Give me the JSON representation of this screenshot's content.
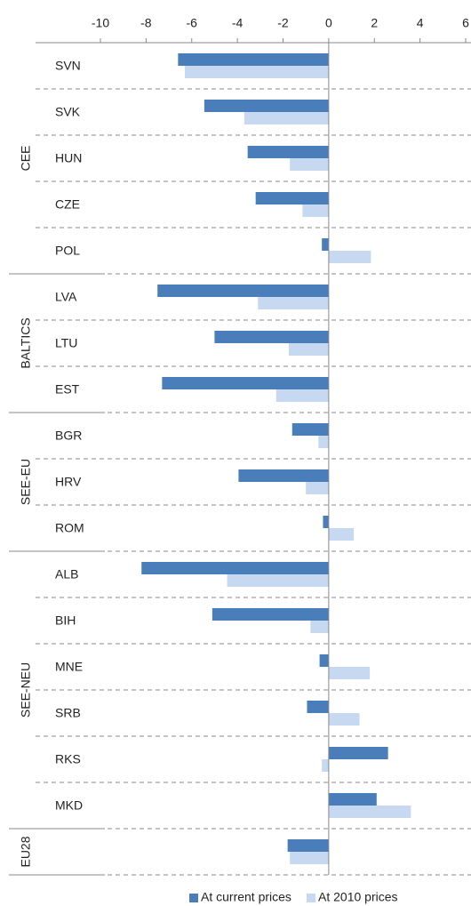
{
  "chart_data": {
    "type": "hbar",
    "categories": [
      "SVN",
      "SVK",
      "HUN",
      "CZE",
      "POL",
      "LVA",
      "LTU",
      "EST",
      "BGR",
      "HRV",
      "ROM",
      "ALB",
      "BIH",
      "MNE",
      "SRB",
      "RKS",
      "MKD",
      null
    ],
    "groups": [
      "CEE",
      "CEE",
      "CEE",
      "CEE",
      "CEE",
      "BALTICS",
      "BALTICS",
      "BALTICS",
      "SEE-EU",
      "SEE-EU",
      "SEE-EU",
      "SEE-NEU",
      "SEE-NEU",
      "SEE-NEU",
      "SEE-NEU",
      "SEE-NEU",
      "SEE-NEU",
      "EU28"
    ],
    "series": [
      {
        "name": "At current prices",
        "color": "#4a7ebb",
        "values": [
          -6.6,
          -5.45,
          -3.55,
          -3.2,
          -0.3,
          -7.5,
          -5.0,
          -7.3,
          -1.6,
          -3.95,
          -0.25,
          -8.2,
          -5.1,
          -0.4,
          -0.95,
          2.6,
          2.1,
          -1.8
        ]
      },
      {
        "name": "At 2010 prices",
        "color": "#c6d9f1",
        "values": [
          -6.3,
          -3.7,
          -1.7,
          -1.15,
          1.85,
          -3.1,
          -1.75,
          -2.3,
          -0.45,
          -1.0,
          1.1,
          -4.45,
          -0.8,
          1.8,
          1.35,
          -0.3,
          3.6,
          -1.7
        ]
      }
    ],
    "xlim": [
      -10,
      6
    ],
    "xticks": [
      -10,
      -8,
      -6,
      -4,
      -2,
      0,
      2,
      4,
      6
    ],
    "legend": "bottom"
  }
}
